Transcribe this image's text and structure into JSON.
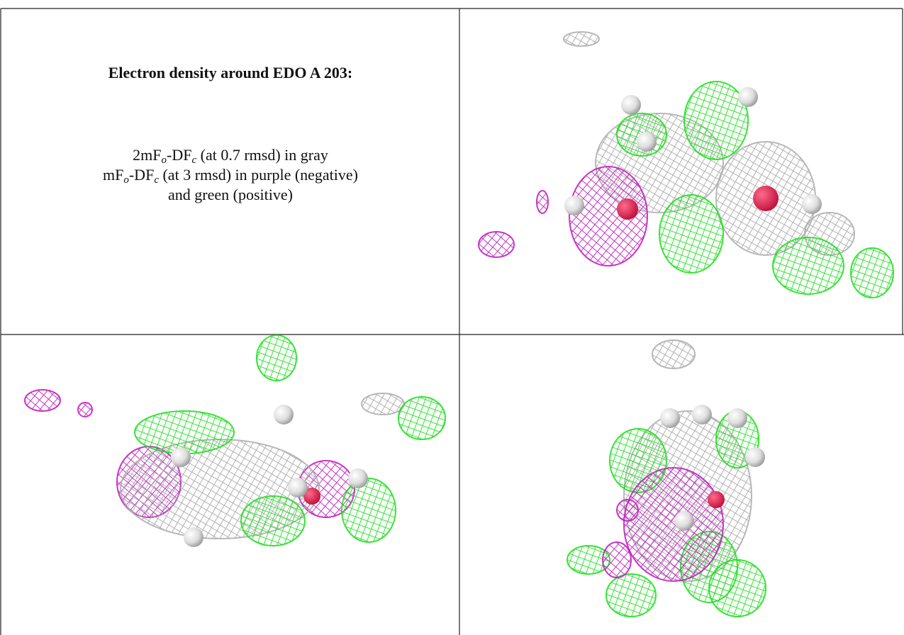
{
  "caption": {
    "title": "Electron density around EDO A 203:",
    "line1": [
      "2mF",
      "o",
      "-DF",
      "c",
      " (at 0.7 rmsd) in gray"
    ],
    "line2": [
      "mF",
      "o",
      "-DF",
      "c",
      " (at 3 rmsd) in purple (negative)"
    ],
    "line3": "and green (positive)"
  }
}
